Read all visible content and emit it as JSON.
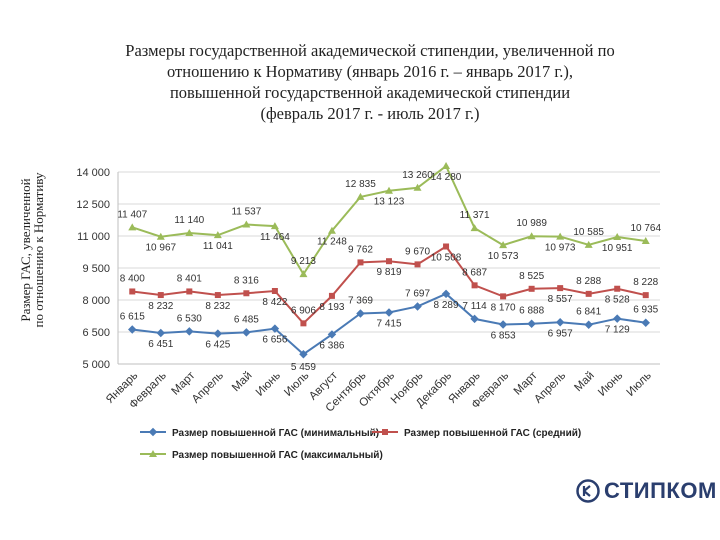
{
  "title": {
    "lines": [
      "Размеры государственной академической стипендии, увеличенной по",
      "отношению к Нормативу (январь 2016 г. – январь 2017 г.),",
      "повышенной государственной академической стипендии",
      "(февраль 2017 г. - июль 2017 г.)"
    ]
  },
  "logo": {
    "text": "СТИПКОМ"
  },
  "colors": {
    "min": "#4a7ab5",
    "avg": "#c0504d",
    "max": "#9bbb59"
  },
  "chart_data": {
    "type": "line",
    "ylabel": [
      "Размер ГАС, увеличенной",
      "по отношению к Нормативу"
    ],
    "ylim": [
      5000,
      14000
    ],
    "yticks": [
      5000,
      6500,
      8000,
      9500,
      11000,
      12500,
      14000
    ],
    "ytick_labels": [
      "5 000",
      "6 500",
      "8 000",
      "9 500",
      "11 000",
      "12 500",
      "14 000"
    ],
    "grid": true,
    "legend_position": "bottom",
    "categories": [
      "Январь",
      "Февраль",
      "Март",
      "Апрель",
      "Май",
      "Июнь",
      "Июль",
      "Август",
      "Сентябрь",
      "Октябрь",
      "Ноябрь",
      "Декабрь",
      "Январь",
      "Февраль",
      "Март",
      "Апрель",
      "Май",
      "Июнь",
      "Июль"
    ],
    "series": [
      {
        "key": "min",
        "name": "Размер повышенной ГАС (минимальный)",
        "values": [
          6615,
          6451,
          6530,
          6425,
          6485,
          6656,
          5459,
          6386,
          7369,
          7415,
          7697,
          8289,
          7114,
          6853,
          6888,
          6957,
          6841,
          7129,
          6935
        ],
        "labels": [
          "6 615",
          "6 451",
          "6 530",
          "6 425",
          "6 485",
          "6 656",
          "5 459",
          "6 386",
          "7 369",
          "7 415",
          "7 697",
          "8 289",
          "7 114",
          "6 853",
          "6 888",
          "6 957",
          "6 841",
          "7 129",
          "6 935"
        ]
      },
      {
        "key": "avg",
        "name": "Размер повышенной ГАС (средний)",
        "values": [
          8400,
          8232,
          8401,
          8232,
          8316,
          8422,
          6906,
          8193,
          9762,
          9819,
          9670,
          10508,
          8687,
          8170,
          8525,
          8557,
          8288,
          8528,
          8228
        ],
        "labels": [
          "8 400",
          "8 232",
          "8 401",
          "8 232",
          "8 316",
          "8 422",
          "6 906",
          "8 193",
          "9 762",
          "9 819",
          "9 670",
          "10 508",
          "8 687",
          "8 170",
          "8 525",
          "8 557",
          "8 288",
          "8 528",
          "8 228"
        ]
      },
      {
        "key": "max",
        "name": "Размер повышенной ГАС (максимальный)",
        "values": [
          11407,
          10967,
          11140,
          11041,
          11537,
          11464,
          9213,
          11248,
          12835,
          13123,
          13260,
          14280,
          11371,
          10573,
          10989,
          10973,
          10585,
          10951,
          10764
        ],
        "labels": [
          "11 407",
          "10 967",
          "11 140",
          "11 041",
          "11 537",
          "11 464",
          "9 213",
          "11 248",
          "12 835",
          "13 123",
          "13 260",
          "14 280",
          "11 371",
          "10 573",
          "10 989",
          "10 973",
          "10 585",
          "10 951",
          "10 764"
        ]
      }
    ]
  }
}
